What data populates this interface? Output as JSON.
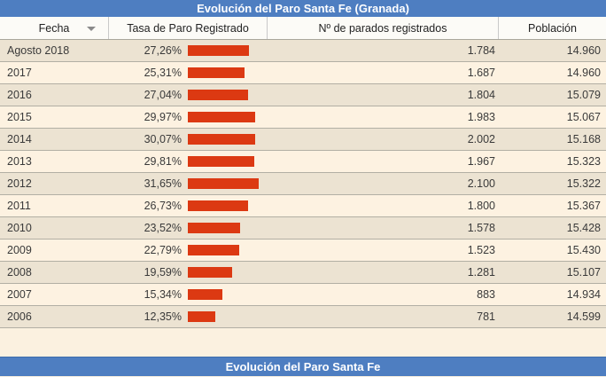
{
  "title": "Evolución del Paro Santa Fe (Granada)",
  "footer_title": "Evolución del Paro Santa Fe",
  "columns": [
    "Fecha",
    "Tasa de Paro Registrado",
    "Nº de parados registrados",
    "Población"
  ],
  "rows": [
    {
      "fecha": "Agosto 2018",
      "tasa": "27,26%",
      "tasa_value": 27.26,
      "parados": "1.784",
      "poblacion": "14.960"
    },
    {
      "fecha": "2017",
      "tasa": "25,31%",
      "tasa_value": 25.31,
      "parados": "1.687",
      "poblacion": "14.960"
    },
    {
      "fecha": "2016",
      "tasa": "27,04%",
      "tasa_value": 27.04,
      "parados": "1.804",
      "poblacion": "15.079"
    },
    {
      "fecha": "2015",
      "tasa": "29,97%",
      "tasa_value": 29.97,
      "parados": "1.983",
      "poblacion": "15.067"
    },
    {
      "fecha": "2014",
      "tasa": "30,07%",
      "tasa_value": 30.07,
      "parados": "2.002",
      "poblacion": "15.168"
    },
    {
      "fecha": "2013",
      "tasa": "29,81%",
      "tasa_value": 29.81,
      "parados": "1.967",
      "poblacion": "15.323"
    },
    {
      "fecha": "2012",
      "tasa": "31,65%",
      "tasa_value": 31.65,
      "parados": "2.100",
      "poblacion": "15.322"
    },
    {
      "fecha": "2011",
      "tasa": "26,73%",
      "tasa_value": 26.73,
      "parados": "1.800",
      "poblacion": "15.367"
    },
    {
      "fecha": "2010",
      "tasa": "23,52%",
      "tasa_value": 23.52,
      "parados": "1.578",
      "poblacion": "15.428"
    },
    {
      "fecha": "2009",
      "tasa": "22,79%",
      "tasa_value": 22.79,
      "parados": "1.523",
      "poblacion": "15.430"
    },
    {
      "fecha": "2008",
      "tasa": "19,59%",
      "tasa_value": 19.59,
      "parados": "1.281",
      "poblacion": "15.107"
    },
    {
      "fecha": "2007",
      "tasa": "15,34%",
      "tasa_value": 15.34,
      "parados": "883",
      "poblacion": "14.934"
    },
    {
      "fecha": "2006",
      "tasa": "12,35%",
      "tasa_value": 12.35,
      "parados": "781",
      "poblacion": "14.599"
    }
  ],
  "colors": {
    "header_blue": "#4e7ec1",
    "bar_red": "#dc3912",
    "row_odd": "#ece3d2",
    "row_even": "#fdf2e1",
    "gap_bg": "#fbf1e0"
  },
  "chart_data": {
    "type": "table",
    "title": "Evolución del Paro Santa Fe (Granada)",
    "columns": [
      "Fecha",
      "Tasa de Paro Registrado",
      "Nº de parados registrados",
      "Población"
    ],
    "categories": [
      "Agosto 2018",
      "2017",
      "2016",
      "2015",
      "2014",
      "2013",
      "2012",
      "2011",
      "2010",
      "2009",
      "2008",
      "2007",
      "2006"
    ],
    "series": [
      {
        "name": "Tasa de Paro Registrado (%)",
        "values": [
          27.26,
          25.31,
          27.04,
          29.97,
          30.07,
          29.81,
          31.65,
          26.73,
          23.52,
          22.79,
          19.59,
          15.34,
          12.35
        ]
      },
      {
        "name": "Nº de parados registrados",
        "values": [
          1784,
          1687,
          1804,
          1983,
          2002,
          1967,
          2100,
          1800,
          1578,
          1523,
          1281,
          883,
          781
        ]
      },
      {
        "name": "Población",
        "values": [
          14960,
          14960,
          15079,
          15067,
          15168,
          15323,
          15322,
          15367,
          15428,
          15430,
          15107,
          14934,
          14599
        ]
      }
    ],
    "bar_style": "inline horizontal bars next to rate column",
    "bar_max_value": 31.65,
    "legend_position": "none",
    "grid": false
  }
}
